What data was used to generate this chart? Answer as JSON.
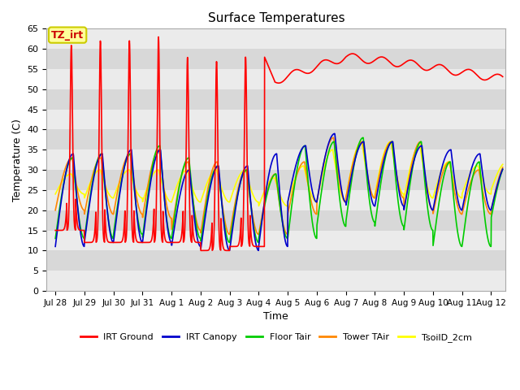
{
  "title": "Surface Temperatures",
  "xlabel": "Time",
  "ylabel": "Temperature (C)",
  "ylim": [
    0,
    65
  ],
  "yticks": [
    0,
    5,
    10,
    15,
    20,
    25,
    30,
    35,
    40,
    45,
    50,
    55,
    60,
    65
  ],
  "fig_bg": "#ffffff",
  "plot_bg_light": "#ebebeb",
  "plot_bg_dark": "#d8d8d8",
  "annotation_text": "TZ_irt",
  "annotation_bg": "#ffff99",
  "annotation_border": "#cccc00",
  "series_colors": {
    "IRT Ground": "#ff0000",
    "IRT Canopy": "#0000cc",
    "Floor Tair": "#00cc00",
    "Tower TAir": "#ff8800",
    "TsoilD_2cm": "#ffff00"
  },
  "xtick_labels": [
    "Jul 28",
    "Jul 29",
    "Jul 30",
    "Jul 31",
    "Aug 1",
    "Aug 2",
    "Aug 3",
    "Aug 4",
    "Aug 5",
    "Aug 6",
    "Aug 7",
    "Aug 8",
    "Aug 9",
    "Aug 10",
    "Aug 11",
    "Aug 12"
  ],
  "xtick_positions": [
    0,
    1,
    2,
    3,
    4,
    5,
    6,
    7,
    8,
    9,
    10,
    11,
    12,
    13,
    14,
    15
  ]
}
